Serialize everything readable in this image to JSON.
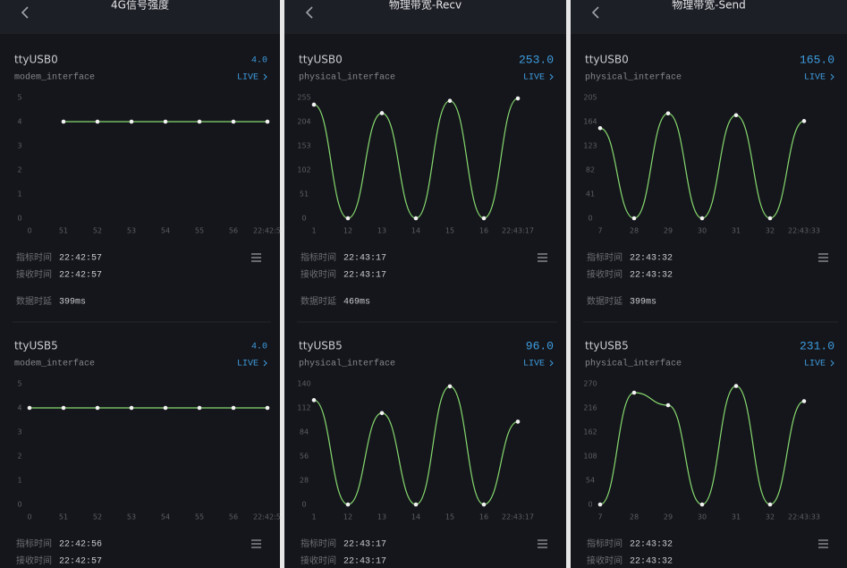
{
  "panels": [
    {
      "title": "4G信号强度",
      "cards": [
        {
          "name": "ttyUSB0",
          "value": "4.0",
          "interface": "modem_interface",
          "live": "LIVE",
          "chart": {
            "type": "line",
            "color": "#86d96f",
            "categories": [
              "0",
              "51",
              "52",
              "53",
              "54",
              "55",
              "56",
              "22:42:5"
            ],
            "values": [
              null,
              4,
              4,
              4,
              4,
              4,
              4,
              4
            ],
            "ylim": [
              0,
              5
            ],
            "yticks": [
              0,
              1,
              2,
              3,
              4,
              5
            ]
          },
          "fields": [
            {
              "label": "指标时间",
              "value": "22:42:57"
            },
            {
              "label": "接收时间",
              "value": "22:42:57"
            },
            {
              "label": "数据时延",
              "value": "399ms"
            }
          ]
        },
        {
          "name": "ttyUSB5",
          "value": "4.0",
          "interface": "modem_interface",
          "live": "LIVE",
          "chart": {
            "type": "line",
            "color": "#86d96f",
            "categories": [
              "0",
              "51",
              "52",
              "53",
              "54",
              "55",
              "56",
              "22:42:5"
            ],
            "values": [
              4,
              4,
              4,
              4,
              4,
              4,
              4,
              4
            ],
            "ylim": [
              0,
              5
            ],
            "yticks": [
              0,
              1,
              2,
              3,
              4,
              5
            ]
          },
          "fields": [
            {
              "label": "指标时间",
              "value": "22:42:56"
            },
            {
              "label": "接收时间",
              "value": "22:42:57"
            }
          ]
        }
      ]
    },
    {
      "title": "物理带宽-Recv",
      "cards": [
        {
          "name": "ttyUSB0",
          "value": "253.0",
          "interface": "physical_interface",
          "live": "LIVE",
          "chart": {
            "type": "line",
            "color": "#86d96f",
            "categories": [
              "1",
              "12",
              "13",
              "14",
              "15",
              "16",
              "22:43:17"
            ],
            "values": [
              240,
              0,
              222,
              0,
              248,
              0,
              253
            ],
            "ylim": [
              0,
              255
            ],
            "yticks": [
              0,
              51,
              102,
              153,
              204,
              255
            ]
          },
          "fields": [
            {
              "label": "指标时间",
              "value": "22:43:17"
            },
            {
              "label": "接收时间",
              "value": "22:43:17"
            },
            {
              "label": "数据时延",
              "value": "469ms"
            }
          ]
        },
        {
          "name": "ttyUSB5",
          "value": "96.0",
          "interface": "physical_interface",
          "live": "LIVE",
          "chart": {
            "type": "line",
            "color": "#86d96f",
            "categories": [
              "1",
              "12",
              "13",
              "14",
              "15",
              "16",
              "22:43:17"
            ],
            "values": [
              121,
              0,
              106,
              0,
              137,
              0,
              96
            ],
            "ylim": [
              0,
              140
            ],
            "yticks": [
              0,
              28,
              56,
              84,
              112,
              140
            ]
          },
          "fields": [
            {
              "label": "指标时间",
              "value": "22:43:17"
            },
            {
              "label": "接收时间",
              "value": "22:43:17"
            }
          ]
        }
      ]
    },
    {
      "title": "物理带宽-Send",
      "cards": [
        {
          "name": "ttyUSB0",
          "value": "165.0",
          "interface": "physical_interface",
          "live": "LIVE",
          "chart": {
            "type": "line",
            "color": "#86d96f",
            "categories": [
              "7",
              "28",
              "29",
              "30",
              "31",
              "32",
              "22:43:33"
            ],
            "values": [
              153,
              0,
              178,
              0,
              175,
              0,
              165
            ],
            "ylim": [
              0,
              205
            ],
            "yticks": [
              0,
              41,
              82,
              123,
              164,
              205
            ]
          },
          "fields": [
            {
              "label": "指标时间",
              "value": "22:43:32"
            },
            {
              "label": "接收时间",
              "value": "22:43:32"
            },
            {
              "label": "数据时延",
              "value": "399ms"
            }
          ]
        },
        {
          "name": "ttyUSB5",
          "value": "231.0",
          "interface": "physical_interface",
          "live": "LIVE",
          "chart": {
            "type": "line",
            "color": "#86d96f",
            "categories": [
              "7",
              "28",
              "29",
              "30",
              "31",
              "32",
              "22:43:33"
            ],
            "values": [
              0,
              250,
              222,
              0,
              265,
              0,
              231
            ],
            "ylim": [
              0,
              270
            ],
            "yticks": [
              0,
              54,
              108,
              162,
              216,
              270
            ]
          },
          "fields": [
            {
              "label": "指标时间",
              "value": "22:43:32"
            },
            {
              "label": "接收时间",
              "value": "22:43:32"
            }
          ]
        }
      ]
    }
  ]
}
